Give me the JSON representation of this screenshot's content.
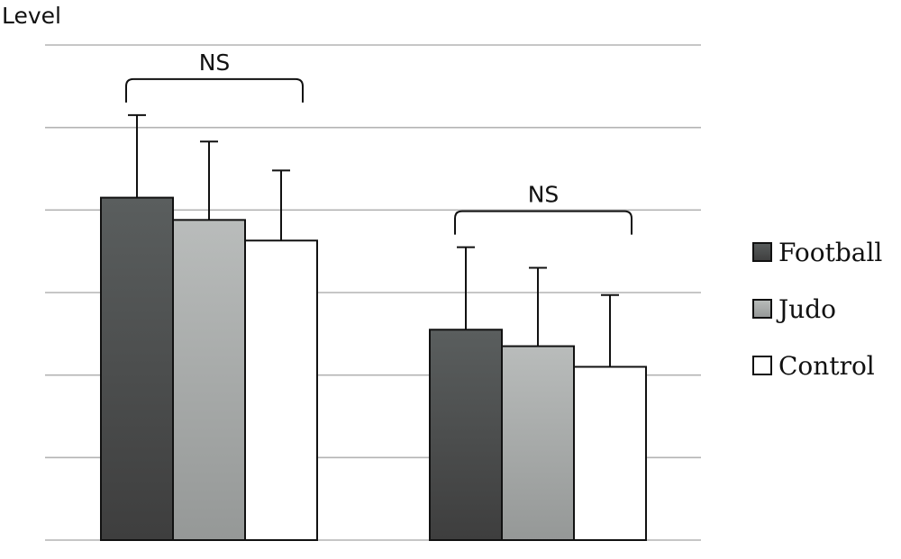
{
  "chart_data": {
    "type": "bar",
    "title": "",
    "ylabel": "Level",
    "xlabel": "",
    "categories": [
      "",
      ""
    ],
    "ylim": [
      0,
      6
    ],
    "grid": true,
    "legend_position": "right",
    "series": [
      {
        "name": "Football",
        "color": "#4d4d4d",
        "values": [
          4.15,
          2.55
        ],
        "errors": [
          1.0,
          1.0
        ]
      },
      {
        "name": "Judo",
        "color": "#a9acab",
        "values": [
          3.88,
          2.35
        ],
        "errors": [
          0.95,
          0.95
        ]
      },
      {
        "name": "Control",
        "color": "#ffffff",
        "values": [
          3.63,
          2.1
        ],
        "errors": [
          0.85,
          0.87
        ]
      }
    ],
    "annotations": [
      {
        "label": "NS",
        "group": 0
      },
      {
        "label": "NS",
        "group": 1
      }
    ]
  }
}
